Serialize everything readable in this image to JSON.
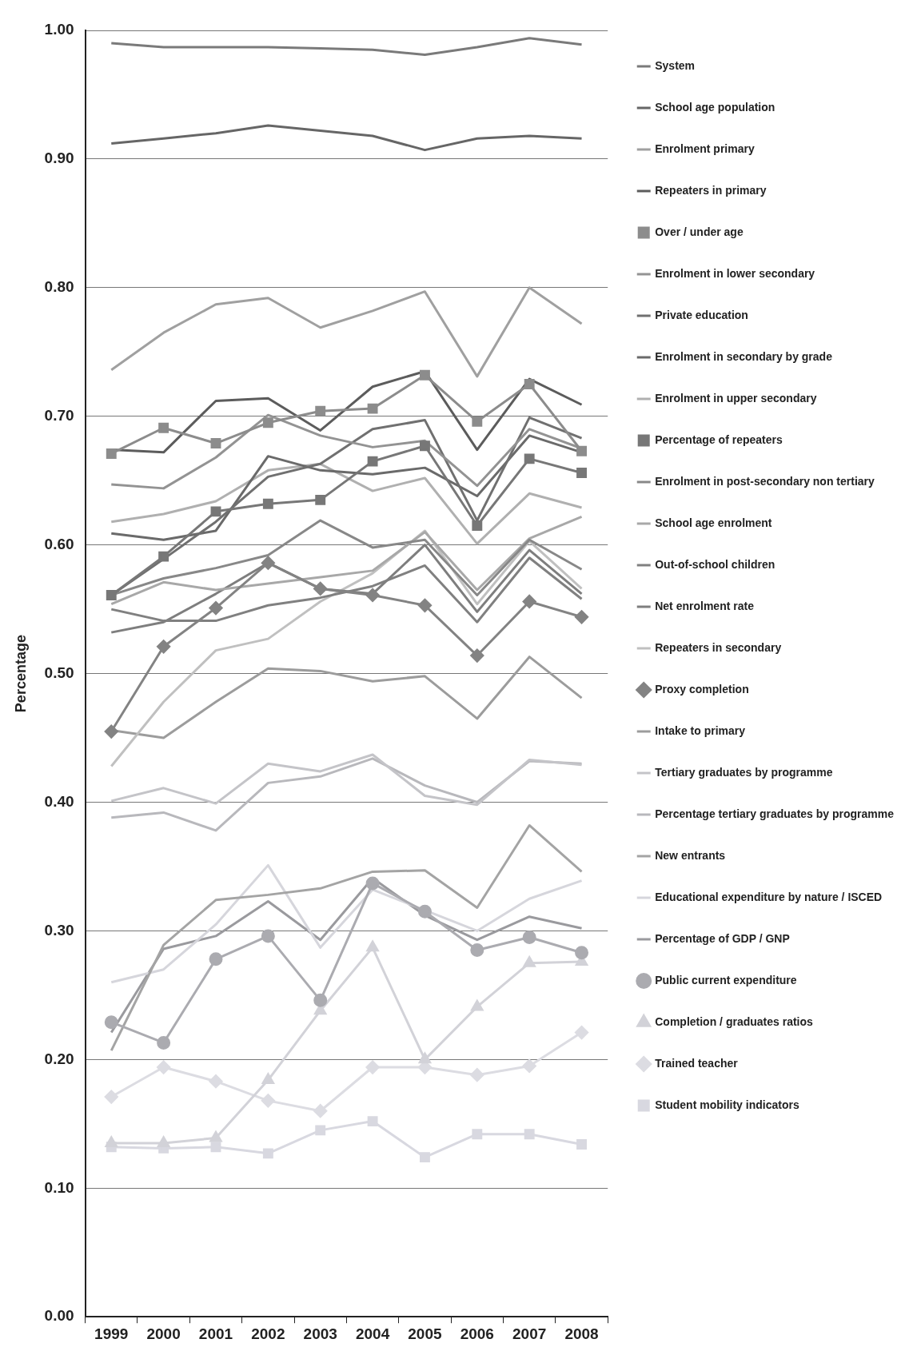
{
  "chart_data": {
    "type": "line",
    "ylabel": "Percentage",
    "categories": [
      "1999",
      "2000",
      "2001",
      "2002",
      "2003",
      "2004",
      "2005",
      "2006",
      "2007",
      "2008"
    ],
    "ylim": [
      0,
      1
    ],
    "yticks": [
      {
        "value": 0,
        "label": "0.00"
      },
      {
        "value": 0.1,
        "label": "0.10"
      },
      {
        "value": 0.2,
        "label": "0.20"
      },
      {
        "value": 0.3,
        "label": "0.30"
      },
      {
        "value": 0.4,
        "label": "0.40"
      },
      {
        "value": 0.5,
        "label": "0.50"
      },
      {
        "value": 0.6,
        "label": "0.60"
      },
      {
        "value": 0.7,
        "label": "0.70"
      },
      {
        "value": 0.8,
        "label": "0.80"
      },
      {
        "value": 0.9,
        "label": "0.90"
      },
      {
        "value": 1,
        "label": "1.00"
      }
    ],
    "grid": "y",
    "legend": "right",
    "line_style": "solid",
    "series": [
      {
        "name": "System",
        "color": "#7a7a7a",
        "marker": "none",
        "values": [
          0.99,
          0.987,
          0.987,
          0.987,
          0.986,
          0.985,
          0.981,
          0.987,
          0.994,
          0.989
        ]
      },
      {
        "name": "School age population",
        "color": "#666666",
        "marker": "none",
        "values": [
          0.912,
          0.916,
          0.92,
          0.926,
          0.922,
          0.918,
          0.907,
          0.916,
          0.918,
          0.916
        ]
      },
      {
        "name": "Enrolment primary",
        "color": "#a0a0a0",
        "marker": "none",
        "values": [
          0.736,
          0.765,
          0.787,
          0.792,
          0.769,
          0.782,
          0.797,
          0.731,
          0.8,
          0.772
        ]
      },
      {
        "name": "Repeaters in primary",
        "color": "#5c5c5c",
        "marker": "none",
        "values": [
          0.674,
          0.672,
          0.712,
          0.714,
          0.689,
          0.723,
          0.735,
          0.674,
          0.729,
          0.709
        ]
      },
      {
        "name": "Over / under age",
        "color": "#8c8c8c",
        "marker": "square",
        "values": [
          0.671,
          0.691,
          0.679,
          0.695,
          0.704,
          0.706,
          0.732,
          0.696,
          0.725,
          0.673
        ]
      },
      {
        "name": "Enrolment in lower secondary",
        "color": "#939393",
        "marker": "none",
        "values": [
          0.647,
          0.644,
          0.668,
          0.701,
          0.685,
          0.676,
          0.681,
          0.646,
          0.69,
          0.675
        ]
      },
      {
        "name": "Private education",
        "color": "#707070",
        "marker": "none",
        "values": [
          0.561,
          0.589,
          0.618,
          0.653,
          0.663,
          0.69,
          0.697,
          0.619,
          0.699,
          0.683
        ]
      },
      {
        "name": "Enrolment in secondary by grade",
        "color": "#6a6a6a",
        "marker": "none",
        "values": [
          0.609,
          0.604,
          0.611,
          0.669,
          0.658,
          0.655,
          0.66,
          0.638,
          0.685,
          0.672
        ]
      },
      {
        "name": "Enrolment in upper secondary",
        "color": "#b0b0b0",
        "marker": "none",
        "values": [
          0.618,
          0.624,
          0.634,
          0.658,
          0.663,
          0.642,
          0.652,
          0.601,
          0.64,
          0.629
        ]
      },
      {
        "name": "Percentage of repeaters",
        "color": "#777777",
        "marker": "square",
        "values": [
          0.561,
          0.591,
          0.626,
          0.632,
          0.635,
          0.665,
          0.677,
          0.615,
          0.667,
          0.656
        ]
      },
      {
        "name": "Enrolment in post-secondary non tertiary",
        "color": "#888888",
        "marker": "none",
        "values": [
          0.561,
          0.574,
          0.582,
          0.592,
          0.619,
          0.598,
          0.604,
          0.561,
          0.604,
          0.581
        ]
      },
      {
        "name": "School age enrolment",
        "color": "#a8a8a8",
        "marker": "none",
        "values": [
          0.554,
          0.571,
          0.565,
          0.57,
          0.575,
          0.58,
          0.61,
          0.565,
          0.605,
          0.622
        ]
      },
      {
        "name": "Out-of-school children",
        "color": "#808080",
        "marker": "none",
        "values": [
          0.55,
          0.541,
          0.541,
          0.553,
          0.559,
          0.568,
          0.584,
          0.54,
          0.59,
          0.558
        ]
      },
      {
        "name": "Net enrolment rate",
        "color": "#7e7e7e",
        "marker": "none",
        "values": [
          0.532,
          0.54,
          0.562,
          0.586,
          0.566,
          0.562,
          0.6,
          0.548,
          0.596,
          0.562
        ]
      },
      {
        "name": "Repeaters in secondary",
        "color": "#c0c0c0",
        "marker": "none",
        "values": [
          0.428,
          0.478,
          0.518,
          0.527,
          0.556,
          0.578,
          0.611,
          0.554,
          0.603,
          0.566
        ]
      },
      {
        "name": "Proxy completion",
        "color": "#838383",
        "marker": "diamond",
        "values": [
          0.455,
          0.521,
          0.551,
          0.586,
          0.566,
          0.561,
          0.553,
          0.514,
          0.556,
          0.544
        ]
      },
      {
        "name": "Intake to primary",
        "color": "#9c9c9c",
        "marker": "none",
        "values": [
          0.456,
          0.45,
          0.478,
          0.504,
          0.502,
          0.494,
          0.498,
          0.465,
          0.513,
          0.481
        ]
      },
      {
        "name": "Tertiary graduates by programme",
        "color": "#c4c4c8",
        "marker": "none",
        "values": [
          0.401,
          0.411,
          0.399,
          0.43,
          0.424,
          0.437,
          0.405,
          0.398,
          0.433,
          0.429
        ]
      },
      {
        "name": "Percentage tertiary graduates by programme",
        "color": "#b8b8bc",
        "marker": "none",
        "values": [
          0.388,
          0.392,
          0.378,
          0.415,
          0.42,
          0.434,
          0.413,
          0.4,
          0.432,
          0.43
        ]
      },
      {
        "name": "New entrants",
        "color": "#a4a4a4",
        "marker": "none",
        "values": [
          0.207,
          0.289,
          0.324,
          0.328,
          0.333,
          0.346,
          0.347,
          0.318,
          0.382,
          0.346
        ]
      },
      {
        "name": "Educational expenditure by nature / ISCED",
        "color": "#d6d6dc",
        "marker": "none",
        "values": [
          0.26,
          0.27,
          0.305,
          0.351,
          0.287,
          0.332,
          0.316,
          0.3,
          0.325,
          0.339
        ]
      },
      {
        "name": "Percentage of GDP / GNP",
        "color": "#9a9a9e",
        "marker": "none",
        "values": [
          0.221,
          0.286,
          0.296,
          0.323,
          0.293,
          0.341,
          0.312,
          0.293,
          0.311,
          0.302
        ]
      },
      {
        "name": "Public current expenditure",
        "color": "#ababb0",
        "marker": "circle",
        "values": [
          0.229,
          0.213,
          0.278,
          0.296,
          0.246,
          0.337,
          0.315,
          0.285,
          0.295,
          0.283
        ]
      },
      {
        "name": "Completion / graduates ratios",
        "color": "#d2d2d8",
        "marker": "triangle",
        "values": [
          0.135,
          0.135,
          0.139,
          0.184,
          0.238,
          0.287,
          0.2,
          0.241,
          0.275,
          0.276
        ]
      },
      {
        "name": "Trained teacher",
        "color": "#dcdce2",
        "marker": "diamond",
        "values": [
          0.171,
          0.194,
          0.183,
          0.168,
          0.16,
          0.194,
          0.194,
          0.188,
          0.195,
          0.221
        ]
      },
      {
        "name": "Student mobility indicators",
        "color": "#d8d8e0",
        "marker": "square",
        "values": [
          0.132,
          0.131,
          0.132,
          0.127,
          0.145,
          0.152,
          0.124,
          0.142,
          0.142,
          0.134
        ]
      }
    ]
  }
}
